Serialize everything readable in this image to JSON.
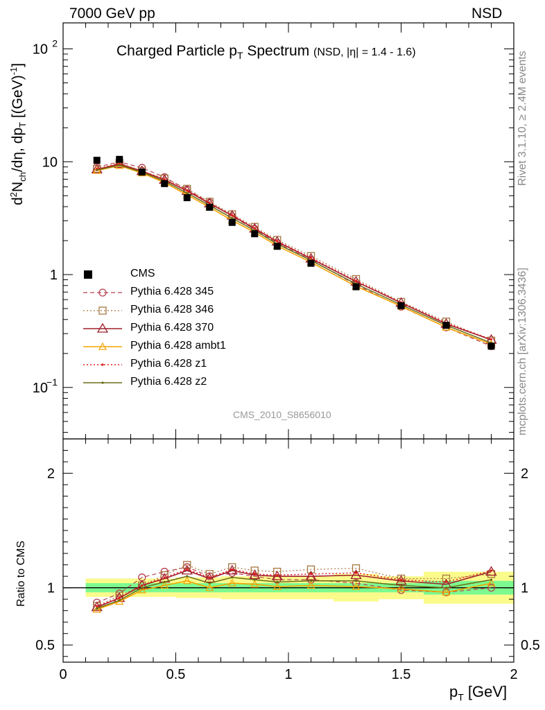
{
  "header": {
    "left": "7000 GeV pp",
    "right": "NSD"
  },
  "title": {
    "main": "Charged Particle p",
    "main_sub": "T",
    "main_suffix": " Spectrum",
    "extra": "(NSD, |η| = 1.4 - 1.6)"
  },
  "side_labels": {
    "rivet": "Rivet 3.1.10, ≥ 2.4M events",
    "mcplots": "mcplots.cern.ch [arXiv:1306.3436]"
  },
  "watermark": "CMS_2010_S8656010",
  "axes": {
    "ylabel_top": "d²N_ch/dη, dp_T [(GeV)⁻¹]",
    "ylabel_bottom": "Ratio to CMS",
    "xlabel": "p",
    "xlabel_sub": "T",
    "xlabel_unit": " [GeV]",
    "top_ticks": [
      "10",
      "1",
      "10"
    ],
    "top_tick_values": [
      100,
      10,
      1,
      0.1
    ],
    "top_tick_labels": [
      "10²",
      "10",
      "1",
      "10⁻¹"
    ],
    "bottom_ticks": [
      "2",
      "1",
      "0.5"
    ],
    "x_ticks": [
      "0",
      "0.5",
      "1",
      "1.5",
      "2"
    ]
  },
  "colors": {
    "cms": "#000000",
    "p345": "#b5404f",
    "p346": "#a5763e",
    "p370": "#9e1f2c",
    "ambt1": "#f5a300",
    "z1": "#e41a1c",
    "z2": "#6b6b16",
    "band_inner": "#7dfa8f",
    "band_outer": "#fbfb8c"
  },
  "chart_data": {
    "type": "line",
    "x_label": "pT [GeV]",
    "y_label": "d2Nch/deta dpT [(GeV)^-1]",
    "yscale": "log",
    "xlim": [
      0,
      2
    ],
    "ylim": [
      0.035,
      170
    ],
    "ratio_ylim": [
      0.35,
      2.3
    ],
    "x": [
      0.15,
      0.25,
      0.35,
      0.45,
      0.55,
      0.65,
      0.75,
      0.85,
      0.95,
      1.1,
      1.3,
      1.5,
      1.7,
      1.9
    ],
    "bins": [
      [
        0.1,
        0.2
      ],
      [
        0.2,
        0.3
      ],
      [
        0.3,
        0.4
      ],
      [
        0.4,
        0.5
      ],
      [
        0.5,
        0.6
      ],
      [
        0.6,
        0.7
      ],
      [
        0.7,
        0.8
      ],
      [
        0.8,
        0.9
      ],
      [
        0.9,
        1.0
      ],
      [
        1.0,
        1.2
      ],
      [
        1.2,
        1.4
      ],
      [
        1.4,
        1.6
      ],
      [
        1.6,
        1.8
      ],
      [
        1.8,
        2.0
      ]
    ],
    "cms": [
      10.3,
      10.5,
      8.1,
      6.4,
      4.8,
      3.95,
      2.9,
      2.3,
      1.78,
      1.26,
      0.78,
      0.53,
      0.355,
      0.232
    ],
    "band_inner": [
      0.04,
      0.04,
      0.04,
      0.04,
      0.04,
      0.04,
      0.04,
      0.04,
      0.04,
      0.04,
      0.04,
      0.04,
      0.06,
      0.06
    ],
    "band_outer": [
      0.08,
      0.08,
      0.08,
      0.08,
      0.09,
      0.09,
      0.1,
      0.1,
      0.1,
      0.1,
      0.12,
      0.1,
      0.14,
      0.14
    ],
    "series": [
      {
        "name": "Pythia 6.428 345",
        "key": "p345",
        "ratio": [
          0.87,
          0.95,
          1.09,
          1.14,
          1.18,
          1.1,
          1.13,
          1.1,
          1.07,
          1.07,
          1.04,
          0.98,
          0.96,
          1.0
        ]
      },
      {
        "name": "Pythia 6.428 346",
        "key": "p346",
        "ratio": [
          0.84,
          0.93,
          1.02,
          1.11,
          1.2,
          1.12,
          1.18,
          1.15,
          1.14,
          1.16,
          1.17,
          1.08,
          1.08,
          1.12
        ]
      },
      {
        "name": "Pythia 6.428 370",
        "key": "p370",
        "ratio": [
          0.83,
          0.91,
          1.02,
          1.08,
          1.15,
          1.08,
          1.15,
          1.11,
          1.1,
          1.1,
          1.11,
          1.06,
          1.03,
          1.14
        ]
      },
      {
        "name": "Pythia 6.428 ambt1",
        "key": "ambt1",
        "ratio": [
          0.81,
          0.88,
          0.98,
          1.02,
          1.06,
          1.0,
          1.04,
          1.03,
          1.01,
          1.02,
          1.01,
          0.99,
          0.96,
          1.04
        ]
      },
      {
        "name": "Pythia 6.428 z1",
        "key": "z1",
        "ratio": [
          0.84,
          0.91,
          1.02,
          1.09,
          1.16,
          1.09,
          1.16,
          1.12,
          1.11,
          1.12,
          1.13,
          1.07,
          1.05,
          1.15
        ]
      },
      {
        "name": "Pythia 6.428 z2",
        "key": "z2",
        "ratio": [
          0.82,
          0.89,
          1.0,
          1.05,
          1.1,
          1.04,
          1.09,
          1.07,
          1.05,
          1.06,
          1.06,
          1.02,
          1.0,
          1.07
        ]
      }
    ]
  }
}
